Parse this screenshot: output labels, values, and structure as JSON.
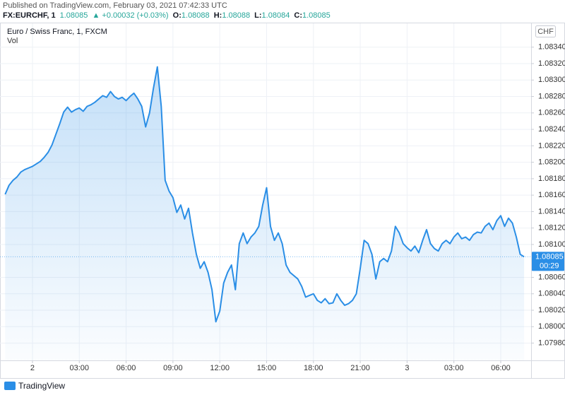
{
  "header": {
    "published": "Published on TradingView.com, February 03, 2021 07:42:33 UTC",
    "footer_brand": "TradingView"
  },
  "chart_data": {
    "type": "line",
    "legend": {
      "symbol": "FX:EURCHF, 1",
      "last": "1.08085",
      "change": "▲ +0.00032 (+0.03%)",
      "ohlc": [
        {
          "key": "O:",
          "val": "1.08088"
        },
        {
          "key": "H:",
          "val": "1.08088"
        },
        {
          "key": "L:",
          "val": "1.08084"
        },
        {
          "key": "C:",
          "val": "1.08085"
        }
      ]
    },
    "title": "Euro / Swiss Franc, 1, FXCM",
    "volume_label": "Vol",
    "currency": "CHF",
    "last_price": 1.08085,
    "countdown": "00:29",
    "color": "#2a8ee6",
    "grid": true,
    "categories": [
      null,
      null,
      null,
      null,
      null,
      null,
      null,
      "2",
      null,
      null,
      null,
      null,
      null,
      null,
      null,
      null,
      null,
      null,
      null,
      "03:00",
      null,
      null,
      null,
      null,
      null,
      null,
      null,
      null,
      null,
      null,
      null,
      "06:00",
      null,
      null,
      null,
      null,
      null,
      null,
      null,
      null,
      null,
      null,
      null,
      "09:00",
      null,
      null,
      null,
      null,
      null,
      null,
      null,
      null,
      null,
      null,
      null,
      "12:00",
      null,
      null,
      null,
      null,
      null,
      null,
      null,
      null,
      null,
      null,
      null,
      "15:00",
      null,
      null,
      null,
      null,
      null,
      null,
      null,
      null,
      null,
      null,
      null,
      "18:00",
      null,
      null,
      null,
      null,
      null,
      null,
      null,
      null,
      null,
      null,
      null,
      "21:00",
      null,
      null,
      null,
      null,
      null,
      null,
      null,
      null,
      null,
      null,
      null,
      "3",
      null,
      null,
      null,
      null,
      null,
      null,
      null,
      null,
      null,
      null,
      null,
      "03:00",
      null,
      null,
      null,
      null,
      null,
      null,
      null,
      null,
      null,
      null,
      null,
      "06:00",
      null,
      null,
      null,
      null,
      null,
      null
    ],
    "values": [
      1.08161,
      1.08172,
      1.08178,
      1.08182,
      1.08188,
      1.08191,
      1.08193,
      1.08195,
      1.08198,
      1.08201,
      1.08206,
      1.08212,
      1.08221,
      1.08234,
      1.08247,
      1.08261,
      1.08267,
      1.08261,
      1.08264,
      1.08266,
      1.08262,
      1.08268,
      1.0827,
      1.08273,
      1.08277,
      1.08281,
      1.08279,
      1.08286,
      1.0828,
      1.08277,
      1.08279,
      1.08275,
      1.0828,
      1.08284,
      1.08277,
      1.08268,
      1.08243,
      1.0826,
      1.0829,
      1.08316,
      1.08268,
      1.08178,
      1.08165,
      1.08157,
      1.08139,
      1.08148,
      1.08131,
      1.08144,
      1.08114,
      1.08088,
      1.08071,
      1.08079,
      1.08066,
      1.08045,
      1.08006,
      1.08019,
      1.08053,
      1.08066,
      1.08075,
      1.08045,
      1.08101,
      1.08114,
      1.08101,
      1.08109,
      1.08114,
      1.08122,
      1.08148,
      1.08169,
      1.08122,
      1.08105,
      1.08114,
      1.08101,
      1.08075,
      1.08066,
      1.08062,
      1.08058,
      1.08049,
      1.08036,
      1.08038,
      1.0804,
      1.08032,
      1.08029,
      1.08034,
      1.08028,
      1.08029,
      1.0804,
      1.08032,
      1.08026,
      1.08028,
      1.08032,
      1.0804,
      1.08071,
      1.08105,
      1.08101,
      1.08088,
      1.08058,
      1.08079,
      1.08083,
      1.08079,
      1.08092,
      1.08122,
      1.08114,
      1.08101,
      1.08096,
      1.08092,
      1.08098,
      1.0809,
      1.08105,
      1.08118,
      1.08101,
      1.08095,
      1.08092,
      1.08101,
      1.08105,
      1.08101,
      1.08109,
      1.08114,
      1.08107,
      1.08109,
      1.08105,
      1.08112,
      1.08115,
      1.08114,
      1.08122,
      1.08126,
      1.08118,
      1.08129,
      1.08135,
      1.08122,
      1.08132,
      1.08126,
      1.08109,
      1.08088,
      1.08085
    ],
    "ylim": [
      1.07959,
      1.08369
    ],
    "yticks": [
      {
        "value": 1.0798,
        "label": "1.07980"
      },
      {
        "value": 1.08,
        "label": "1.08000"
      },
      {
        "value": 1.0802,
        "label": "1.08020"
      },
      {
        "value": 1.0804,
        "label": "1.08040"
      },
      {
        "value": 1.0806,
        "label": "1.08060"
      },
      {
        "value": 1.081,
        "label": "1.08100"
      },
      {
        "value": 1.0812,
        "label": "1.08120"
      },
      {
        "value": 1.0814,
        "label": "1.08140"
      },
      {
        "value": 1.0816,
        "label": "1.08160"
      },
      {
        "value": 1.0818,
        "label": "1.08180"
      },
      {
        "value": 1.082,
        "label": "1.08200"
      },
      {
        "value": 1.0822,
        "label": "1.08220"
      },
      {
        "value": 1.0824,
        "label": "1.08240"
      },
      {
        "value": 1.0826,
        "label": "1.08260"
      },
      {
        "value": 1.0828,
        "label": "1.08280"
      },
      {
        "value": 1.083,
        "label": "1.08300"
      },
      {
        "value": 1.0832,
        "label": "1.08320"
      },
      {
        "value": 1.0834,
        "label": "1.08340"
      }
    ]
  }
}
